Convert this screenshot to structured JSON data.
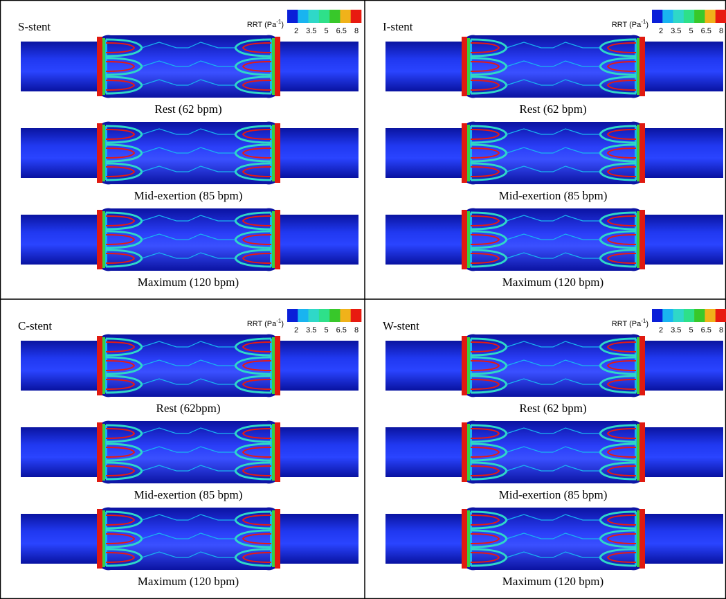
{
  "colorbar": {
    "label_prefix": "RRT (Pa",
    "label_exponent": "-1",
    "label_suffix": ")",
    "ticks": [
      2,
      3.5,
      5,
      6.5,
      8
    ],
    "colors": [
      "#0a1fd8",
      "#19b4f0",
      "#2fd8c8",
      "#2ee08a",
      "#38c82a",
      "#f0b21a",
      "#e81a10"
    ]
  },
  "panels": [
    {
      "title": "S-stent",
      "captions": [
        "Rest (62 bpm)",
        "Mid-exertion (85 bpm)",
        "Maximum (120 bpm)"
      ]
    },
    {
      "title": "I-stent",
      "captions": [
        "Rest (62 bpm)",
        "Mid-exertion (85 bpm)",
        "Maximum (120 bpm)"
      ]
    },
    {
      "title": "C-stent",
      "captions": [
        "Rest (62bpm)",
        "Mid-exertion (85 bpm)",
        "Maximum (120 bpm)"
      ]
    },
    {
      "title": "W-stent",
      "captions": [
        "Rest (62 bpm)",
        "Mid-exertion (85 bpm)",
        "Maximum (120 bpm)"
      ]
    }
  ]
}
